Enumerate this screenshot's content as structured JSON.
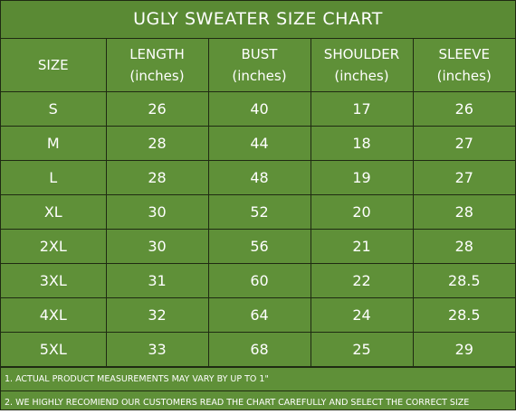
{
  "title": "UGLY SWEATER SIZE CHART",
  "headers": [
    {
      "line1": "SIZE",
      "line2": ""
    },
    {
      "line1": "LENGTH",
      "line2": "(inches)"
    },
    {
      "line1": "BUST",
      "line2": "(inches)"
    },
    {
      "line1": "SHOULDER",
      "line2": "(inches)"
    },
    {
      "line1": "SLEEVE",
      "line2": "(inches)"
    }
  ],
  "rows": [
    [
      "S",
      "26",
      "40",
      "17",
      "26"
    ],
    [
      "M",
      "28",
      "44",
      "18",
      "27"
    ],
    [
      "L",
      "28",
      "48",
      "19",
      "27"
    ],
    [
      "XL",
      "30",
      "52",
      "20",
      "28"
    ],
    [
      "2XL",
      "30",
      "56",
      "21",
      "28"
    ],
    [
      "3XL",
      "31",
      "60",
      "22",
      "28.5"
    ],
    [
      "4XL",
      "32",
      "64",
      "24",
      "28.5"
    ],
    [
      "5XL",
      "33",
      "68",
      "25",
      "29"
    ]
  ],
  "notes": [
    "1. ACTUAL PRODUCT MEASUREMENTS MAY VARY BY UP TO 1\"",
    "2. WE HIGHLY RECOMIEND OUR CUSTOMERS READ THE CHART CAREFULLY AND SELECT THE CORRECT SIZE"
  ],
  "colors": {
    "background": "#5f9038",
    "text": "#ffffff",
    "border": "#1f2a12"
  }
}
